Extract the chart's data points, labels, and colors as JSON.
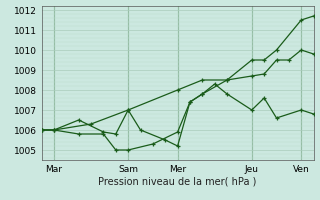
{
  "xlabel": "Pression niveau de la mer( hPa )",
  "bg_color": "#cce8e0",
  "grid_major_color": "#aaccbb",
  "grid_minor_color": "#bbddcc",
  "line_color": "#1a5c1a",
  "vline_color": "#2a6a2a",
  "ylim": [
    1004.5,
    1012.2
  ],
  "xlim": [
    0,
    22
  ],
  "yticks": [
    1005,
    1006,
    1007,
    1008,
    1009,
    1010,
    1011,
    1012
  ],
  "xtick_positions": [
    1,
    7,
    11,
    17,
    21
  ],
  "xtick_labels": [
    "Mar",
    "Sam",
    "Mer",
    "Jeu",
    "Ven"
  ],
  "vline_positions": [
    1,
    7,
    11,
    17,
    21
  ],
  "series1_x": [
    0,
    1,
    3,
    5,
    6,
    7,
    8,
    10,
    11,
    12,
    13,
    14,
    15,
    17,
    18,
    19,
    21,
    22
  ],
  "series1_y": [
    1006.0,
    1006.0,
    1006.5,
    1005.9,
    1005.8,
    1007.0,
    1006.0,
    1005.5,
    1005.2,
    1007.4,
    1007.8,
    1008.3,
    1007.8,
    1007.0,
    1007.6,
    1006.6,
    1007.0,
    1006.8
  ],
  "series2_x": [
    0,
    1,
    3,
    5,
    6,
    7,
    9,
    11,
    12,
    13,
    15,
    17,
    18,
    19,
    20,
    21,
    22
  ],
  "series2_y": [
    1006.0,
    1006.0,
    1005.8,
    1005.8,
    1005.0,
    1005.0,
    1005.3,
    1005.9,
    1007.4,
    1007.8,
    1008.5,
    1008.7,
    1008.8,
    1009.5,
    1009.5,
    1010.0,
    1009.8
  ],
  "series3_x": [
    0,
    1,
    4,
    7,
    11,
    13,
    15,
    17,
    18,
    19,
    21,
    22
  ],
  "series3_y": [
    1006.0,
    1006.0,
    1006.3,
    1007.0,
    1008.0,
    1008.5,
    1008.5,
    1009.5,
    1009.5,
    1010.0,
    1011.5,
    1011.7
  ],
  "xlabel_fontsize": 7,
  "tick_fontsize": 6.5
}
